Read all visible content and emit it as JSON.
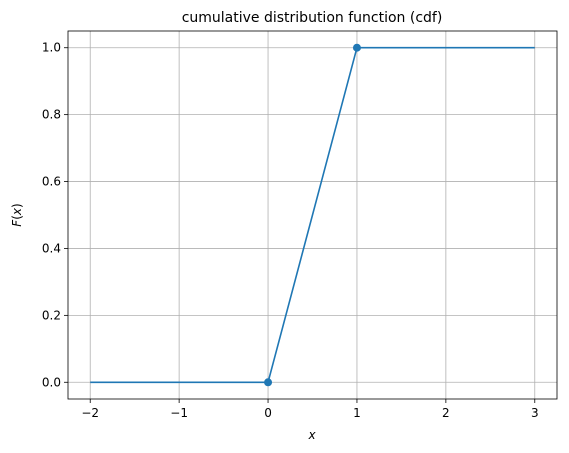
{
  "chart_data": {
    "type": "line",
    "title": "cumulative distribution function (cdf)",
    "xlabel": "x",
    "ylabel": "F(x)",
    "ylabel_parts": {
      "fn": "F",
      "open": "(",
      "var": "x",
      "close": ")"
    },
    "xlim": [
      -2.25,
      3.25
    ],
    "ylim": [
      -0.05,
      1.05
    ],
    "grid": true,
    "x_ticks": [
      -2,
      -1,
      0,
      1,
      2,
      3
    ],
    "x_tick_labels": [
      "−2",
      "−1",
      "0",
      "1",
      "2",
      "3"
    ],
    "y_ticks": [
      0.0,
      0.2,
      0.4,
      0.6,
      0.8,
      1.0
    ],
    "y_tick_labels": [
      "0.0",
      "0.2",
      "0.4",
      "0.6",
      "0.8",
      "1.0"
    ],
    "series": [
      {
        "color": "#1f77b4",
        "x": [
          -2,
          0,
          1,
          3
        ],
        "y": [
          0,
          0,
          1,
          1
        ],
        "markers": [
          {
            "x": 0,
            "y": 0
          },
          {
            "x": 1,
            "y": 1
          }
        ]
      }
    ]
  }
}
